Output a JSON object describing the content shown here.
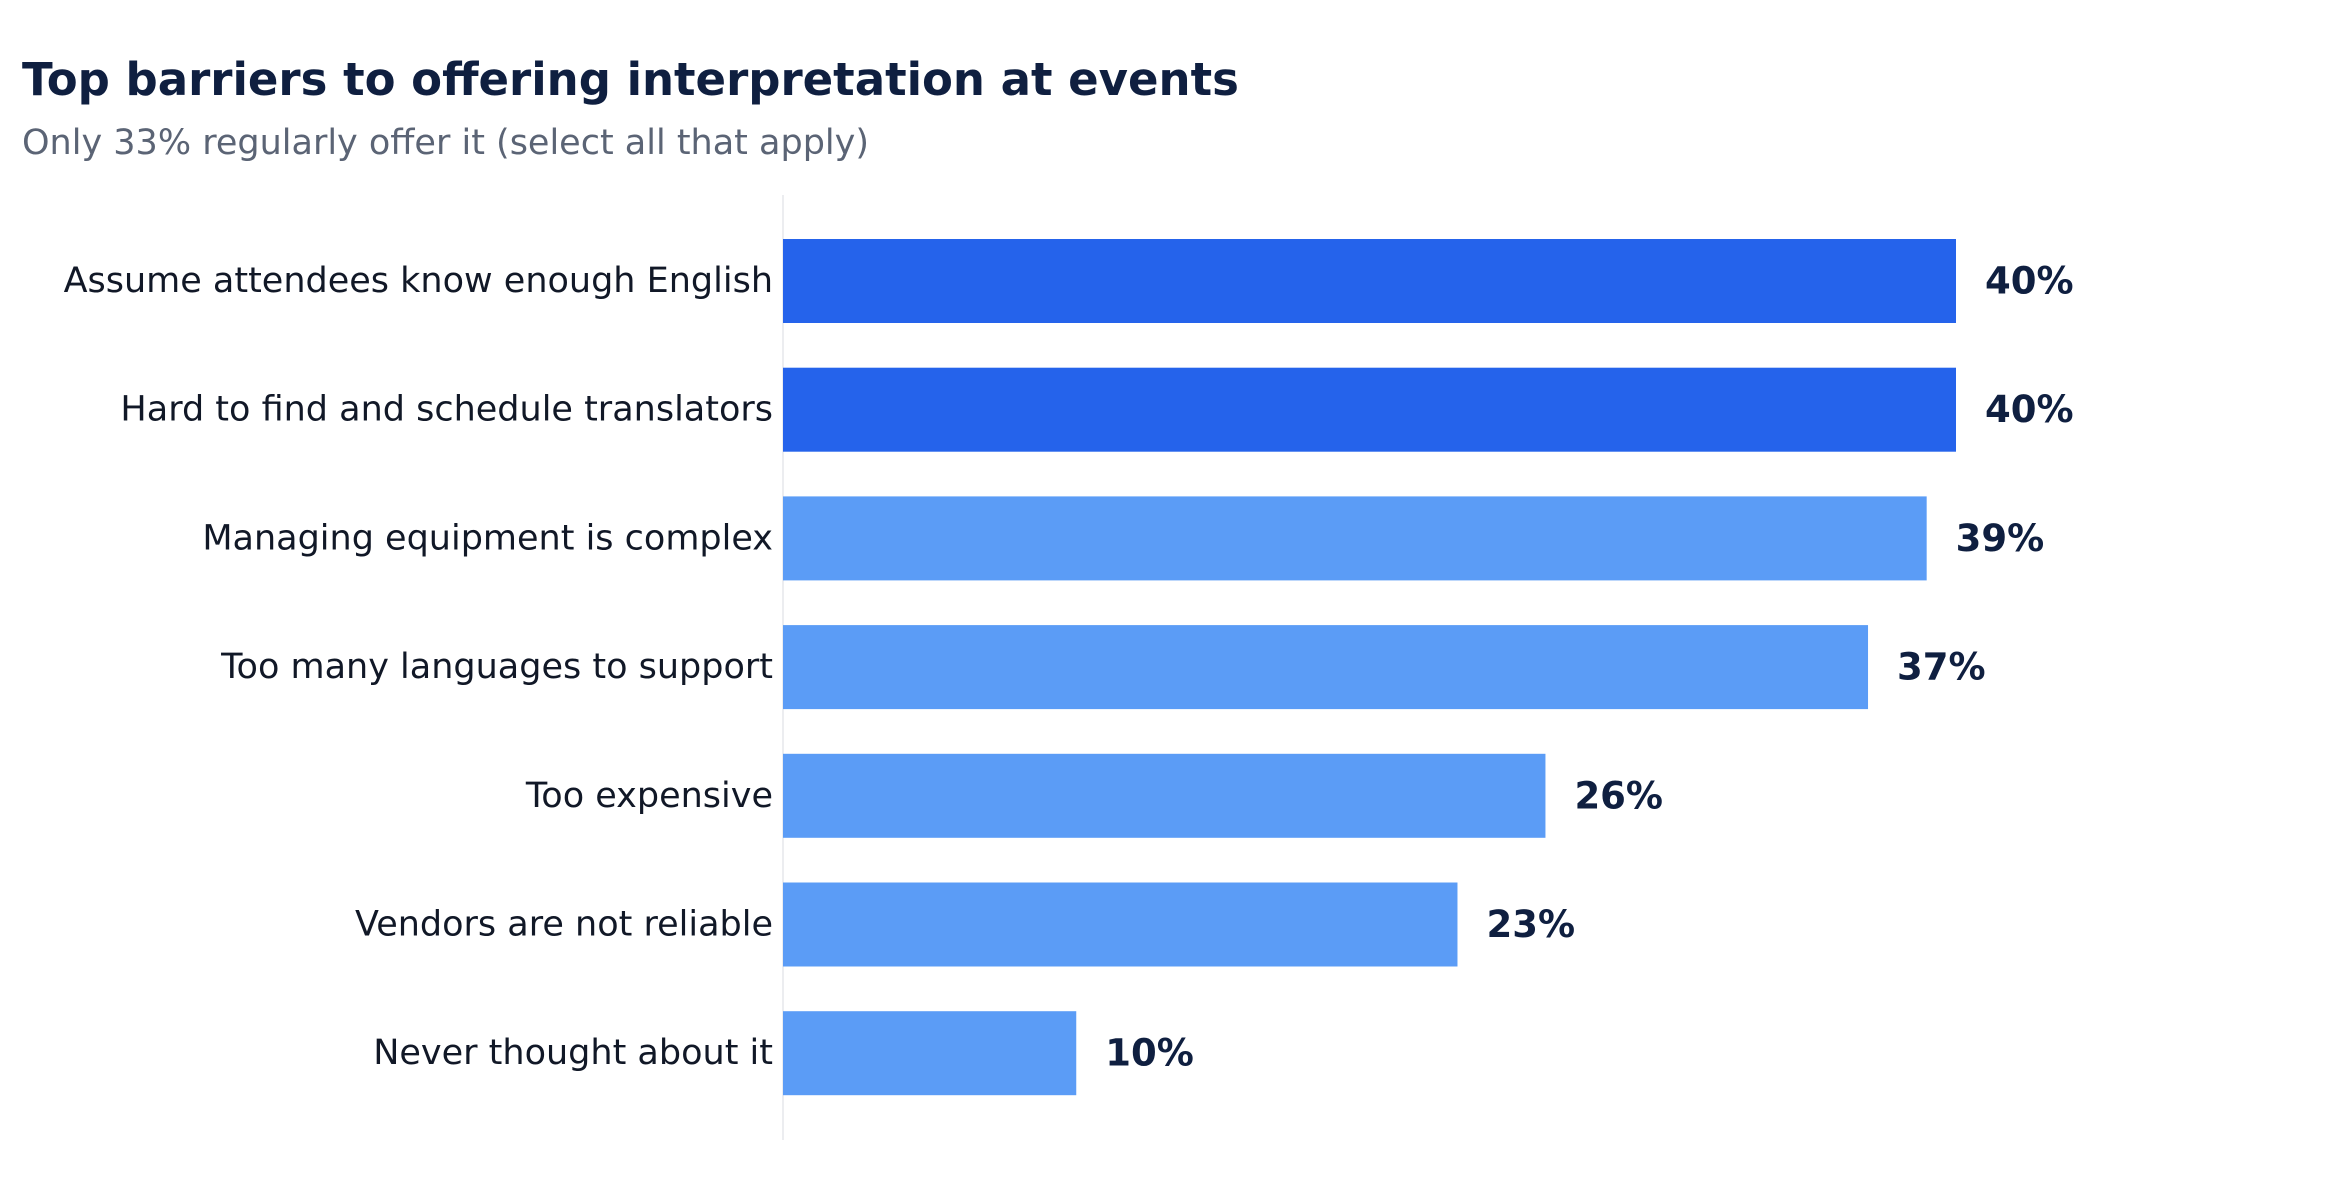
{
  "title": "Top barriers to offering interpretation at events",
  "subtitle": "Only 33% regularly offer it (select all that apply)",
  "colors": {
    "highlight": "#2563eb",
    "bar": "#5b9cf6",
    "axis_line": "#e5e7eb",
    "label_text": "#111827",
    "value_text": "#0f1f40"
  },
  "chart_data": {
    "type": "bar",
    "orientation": "horizontal",
    "categories": [
      "Assume attendees know enough English",
      "Hard to find and schedule translators",
      "Managing equipment is complex",
      "Too many languages to support",
      "Too expensive",
      "Vendors are not reliable",
      "Never thought about it"
    ],
    "values": [
      40,
      40,
      39,
      37,
      26,
      23,
      10
    ],
    "value_labels": [
      "40%",
      "40%",
      "39%",
      "37%",
      "26%",
      "23%",
      "10%"
    ],
    "highlighted": [
      true,
      true,
      false,
      false,
      false,
      false,
      false
    ],
    "unit": "%",
    "xlim": [
      0,
      40
    ],
    "grid": false,
    "legend": "none"
  }
}
